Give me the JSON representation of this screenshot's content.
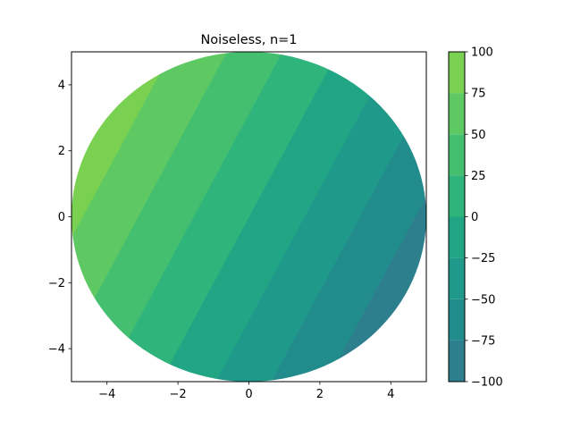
{
  "chart_data": {
    "type": "contourf",
    "title": "Noiseless, n=1",
    "xlabel": "",
    "ylabel": "",
    "xlim": [
      -5,
      5
    ],
    "ylim": [
      -5,
      5
    ],
    "x_ticks": [
      -4,
      -2,
      0,
      2,
      4
    ],
    "y_ticks": [
      -4,
      -2,
      0,
      2,
      4
    ],
    "x_tick_labels": [
      "−4",
      "−2",
      "0",
      "2",
      "4"
    ],
    "y_tick_labels": [
      "−4",
      "−2",
      "0",
      "2",
      "4"
    ],
    "mask": {
      "shape": "circle",
      "center": [
        0,
        0
      ],
      "radius": 5
    },
    "field": {
      "form": "linear",
      "a": -16,
      "b": 8,
      "c": 0
    },
    "levels": [
      -100,
      -75,
      -50,
      -25,
      0,
      25,
      50,
      75,
      100
    ],
    "level_colors": [
      "#2d7f8e",
      "#228c8d",
      "#1f998a",
      "#21a685",
      "#2fb47c",
      "#44bf70",
      "#5ec962",
      "#7ad151"
    ],
    "colorbar": {
      "ticks": [
        -100,
        -75,
        -50,
        -25,
        0,
        25,
        50,
        75,
        100
      ],
      "tick_labels": [
        "−100",
        "−75",
        "−50",
        "−25",
        "0",
        "25",
        "50",
        "75",
        "100"
      ]
    },
    "grid": false,
    "legend": "none"
  }
}
